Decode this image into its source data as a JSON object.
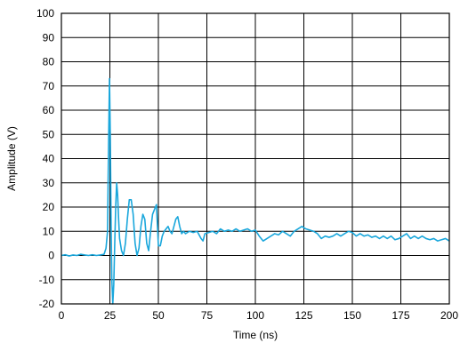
{
  "chart_data": {
    "type": "line",
    "xlabel": "Time (ns)",
    "ylabel": "Amplitude (V)",
    "xlim": [
      0,
      200
    ],
    "ylim": [
      -20,
      100
    ],
    "x_ticks": [
      0,
      25,
      50,
      75,
      100,
      125,
      150,
      175,
      200
    ],
    "y_ticks": [
      -20,
      -10,
      0,
      10,
      20,
      30,
      40,
      50,
      60,
      70,
      80,
      90,
      100
    ],
    "grid": true,
    "line_color": "#1aa7dc",
    "series": [
      {
        "x": [
          0,
          2,
          4,
          6,
          8,
          10,
          12,
          14,
          16,
          18,
          20,
          22,
          23,
          23.8,
          24.3,
          24.8,
          25.2,
          25.6,
          26,
          26.5,
          27,
          27.5,
          28,
          28.5,
          29,
          29.5,
          30,
          31,
          32,
          33,
          34,
          35,
          36,
          37,
          38,
          39,
          40,
          41,
          42,
          43,
          44,
          45,
          46,
          47,
          48,
          49,
          50,
          51,
          52,
          53,
          54,
          55,
          56,
          57,
          58,
          59,
          60,
          61,
          62,
          63,
          64,
          66,
          68,
          70,
          72,
          73,
          74,
          76,
          78,
          80,
          82,
          84,
          86,
          88,
          90,
          92,
          94,
          96,
          98,
          100,
          102,
          104,
          106,
          108,
          110,
          112,
          114,
          116,
          118,
          120,
          122,
          124,
          126,
          128,
          130,
          132,
          134,
          136,
          138,
          140,
          142,
          144,
          146,
          148,
          150,
          152,
          154,
          156,
          158,
          160,
          162,
          164,
          166,
          168,
          170,
          172,
          174,
          176,
          178,
          180,
          182,
          184,
          186,
          188,
          190,
          192,
          194,
          196,
          198,
          200
        ],
        "y": [
          0,
          0.3,
          -0.2,
          0.2,
          0,
          0.5,
          0.2,
          0,
          0.3,
          0,
          0.2,
          0.5,
          3,
          10,
          45,
          73,
          50,
          15,
          -10,
          -20,
          -12,
          5,
          20,
          30,
          25,
          15,
          7,
          2,
          0,
          5,
          15,
          23,
          23,
          17,
          5,
          0,
          3,
          12,
          17,
          15,
          5,
          2,
          10,
          17,
          19,
          21,
          4,
          4,
          8,
          10,
          11,
          12,
          10,
          9,
          12,
          15,
          16,
          12,
          9,
          10,
          9,
          10,
          9.5,
          10,
          7,
          6,
          9,
          9.5,
          10,
          9,
          11,
          10,
          10.5,
          10,
          11,
          10,
          10.5,
          11,
          10,
          10.5,
          8,
          6,
          7,
          8,
          9,
          8.5,
          10,
          9,
          8,
          10,
          11,
          12,
          11,
          10.5,
          10,
          9,
          7,
          8,
          7.5,
          8,
          9,
          8,
          9,
          10,
          9.5,
          8,
          9,
          8,
          8.5,
          7.5,
          8,
          7,
          8,
          7,
          8,
          6.5,
          7,
          8,
          9,
          7,
          8,
          7,
          8,
          7,
          6.5,
          7,
          6,
          6.5,
          7,
          6
        ]
      }
    ]
  }
}
